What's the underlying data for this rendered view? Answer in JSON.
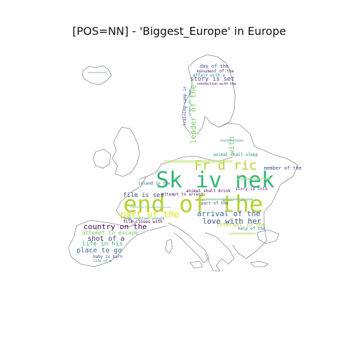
{
  "figure": {
    "title": "[POS=NN] - 'Biggest_Europe' in Europe"
  },
  "wordcloud": {
    "words": [
      {
        "text": "end of the",
        "color": "#b5d334"
      },
      {
        "text": "Sk iv nek",
        "color": "#35b779"
      },
      {
        "text": "Fr d ric",
        "color": "#b5d334"
      },
      {
        "text": "part of the",
        "color": "#dde318"
      },
      {
        "text": "arrival of the",
        "color": "#31688e"
      },
      {
        "text": "love with her",
        "color": "#3e4989"
      },
      {
        "text": "country on the",
        "color": "#440154"
      },
      {
        "text": "shot of a",
        "color": "#482878"
      },
      {
        "text": "place to go",
        "color": "#31688e"
      },
      {
        "text": "life in his",
        "color": "#35b779"
      },
      {
        "text": "attempt to escape",
        "color": "#6ece58"
      },
      {
        "text": "film is set",
        "color": "#3e4989"
      },
      {
        "text": "leader of the",
        "color": "#6ece58"
      },
      {
        "text": "story is set",
        "color": "#3e4989"
      },
      {
        "text": "day of the",
        "color": "#3e4989"
      },
      {
        "text": "monument of the",
        "color": "#482878"
      },
      {
        "text": "affair with a",
        "color": "#26828e"
      },
      {
        "text": "connection with the",
        "color": "#440154"
      },
      {
        "text": "interest in the",
        "color": "#b5d334"
      },
      {
        "text": "member of the",
        "color": "#3e4989"
      },
      {
        "text": "animal shall sleep",
        "color": "#26828e"
      },
      {
        "text": "animal shall drink",
        "color": "#440154"
      },
      {
        "text": "attempt to arrest",
        "color": "#482878"
      },
      {
        "text": "island in the",
        "color": "#31688e"
      },
      {
        "text": "film closes with",
        "color": "#440154"
      },
      {
        "text": "film revolves around",
        "color": "#26828e"
      },
      {
        "text": "baby is born",
        "color": "#3e4989"
      },
      {
        "text": "life of a",
        "color": "#26828e"
      },
      {
        "text": "with",
        "color": "#6ece58"
      },
      {
        "text": "story is told",
        "color": "#482878"
      },
      {
        "text": "training camp in",
        "color": "#3e4989"
      },
      {
        "text": "order to save",
        "color": "#26828e"
      },
      {
        "text": "part of the",
        "color": "#3e4989"
      },
      {
        "text": "help of the",
        "color": "#26828e"
      }
    ]
  }
}
